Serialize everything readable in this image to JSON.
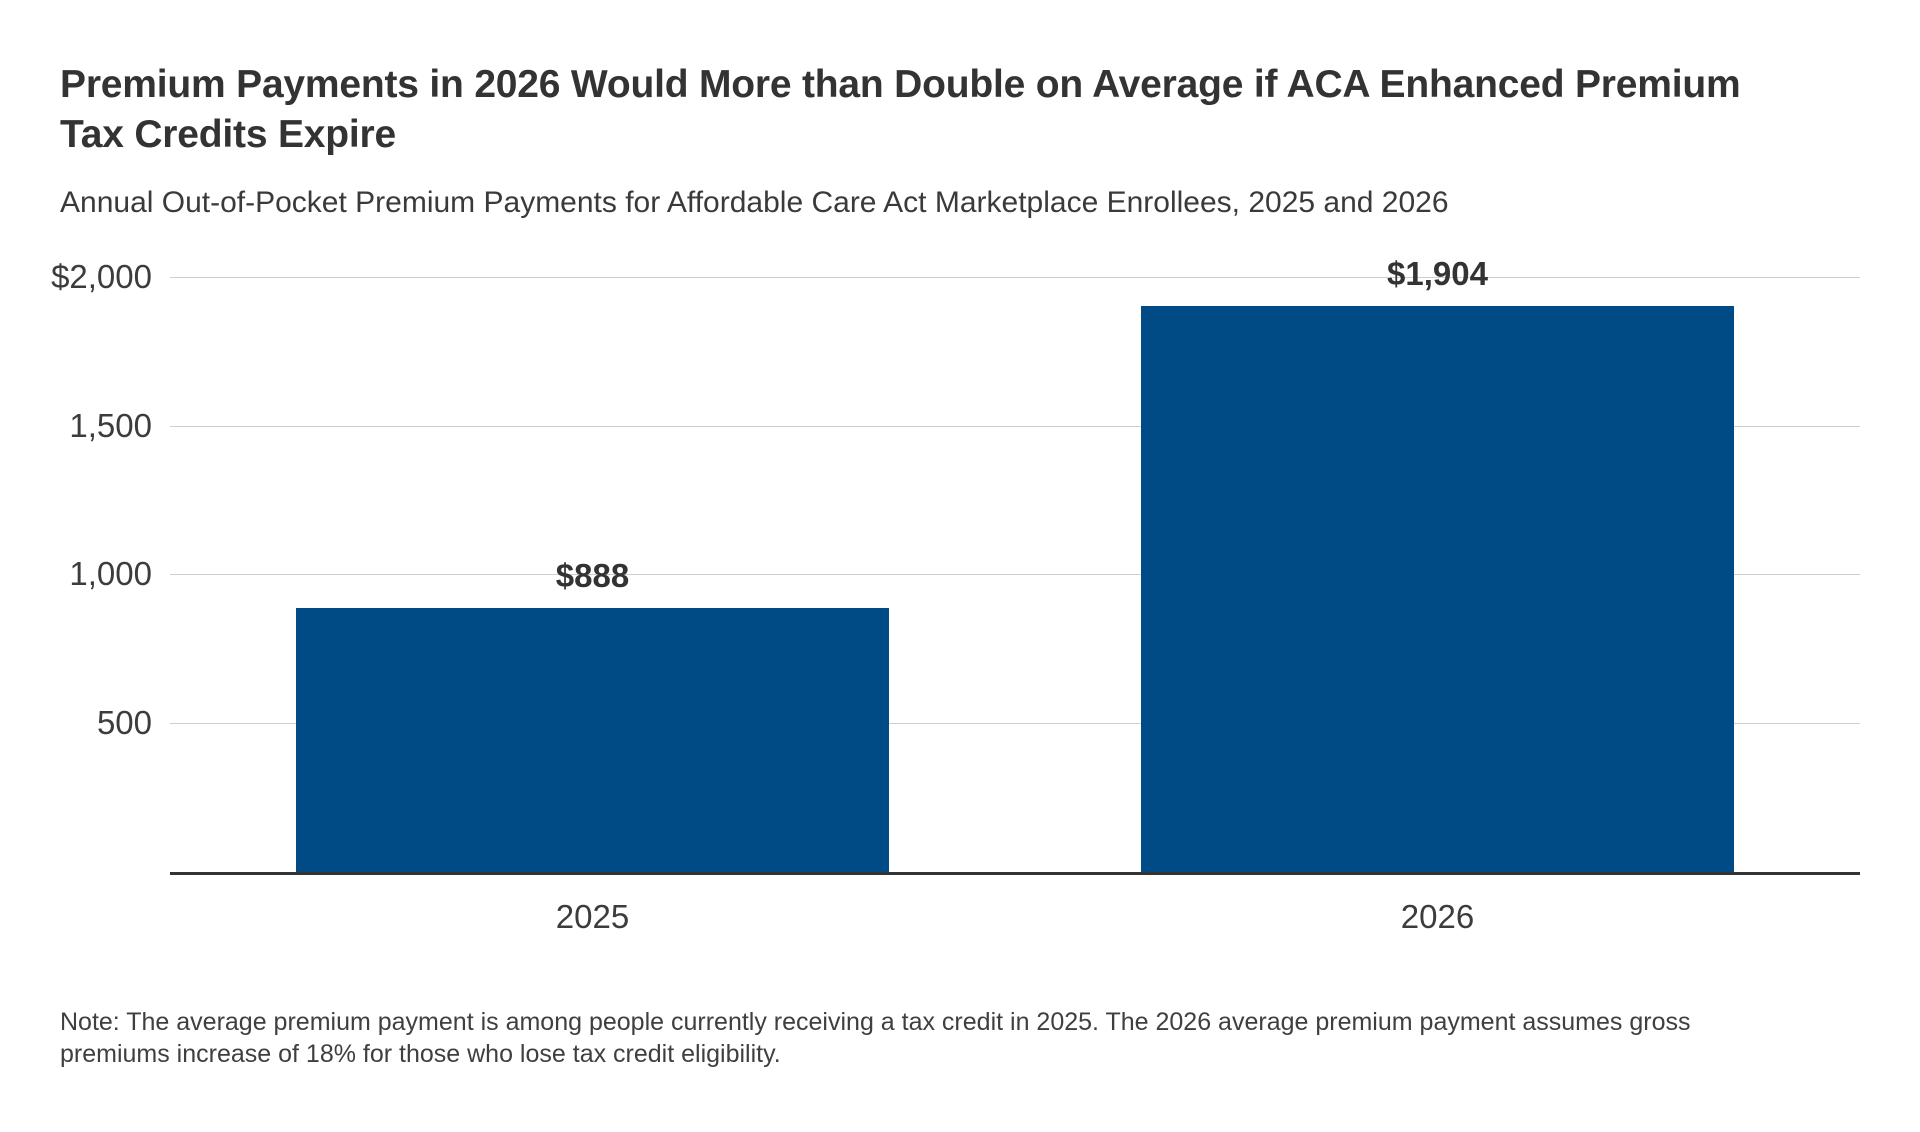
{
  "header": {
    "title": "Premium Payments in 2026 Would More than Double on Average if ACA Enhanced Premium Tax Credits Expire",
    "title_lines": [
      "Premium Payments in 2026 Would More than Double on Average if ACA Enhanced Premium",
      "Tax Credits Expire"
    ],
    "subtitle": "Annual Out-of-Pocket Premium Payments for Affordable Care Act Marketplace Enrollees, 2025 and 2026"
  },
  "chart_data": {
    "type": "bar",
    "title": "Premium Payments in 2026 Would More than Double on Average if ACA Enhanced Premium Tax Credits Expire",
    "subtitle": "Annual Out-of-Pocket Premium Payments for Affordable Care Act Marketplace Enrollees, 2025 and 2026",
    "categories": [
      "2025",
      "2026"
    ],
    "values": [
      888,
      1904
    ],
    "value_labels": [
      "$888",
      "$1,904"
    ],
    "xlabel": "",
    "ylabel": "",
    "ylim": [
      0,
      2000
    ],
    "yticks": [
      {
        "label": "$2,000",
        "value": 2000
      },
      {
        "label": "1,500",
        "value": 1500
      },
      {
        "label": "1,000",
        "value": 1000
      },
      {
        "label": "500",
        "value": 500
      }
    ],
    "grid": true,
    "legend": "none",
    "bar_color": "#004a86",
    "axis_color": "#333333",
    "gridline_color": "#cfcfcf"
  },
  "note": {
    "text": "Note: The average premium payment is among people currently receiving a tax credit in 2025. The 2026 average premium payment assumes gross premiums increase of 18% for those who lose tax credit eligibility.",
    "lines": [
      "Note: The average premium payment is among people currently receiving a tax credit in 2025. The 2026 average premium payment assumes gross",
      "premiums increase of 18% for those who lose tax credit eligibility."
    ]
  }
}
